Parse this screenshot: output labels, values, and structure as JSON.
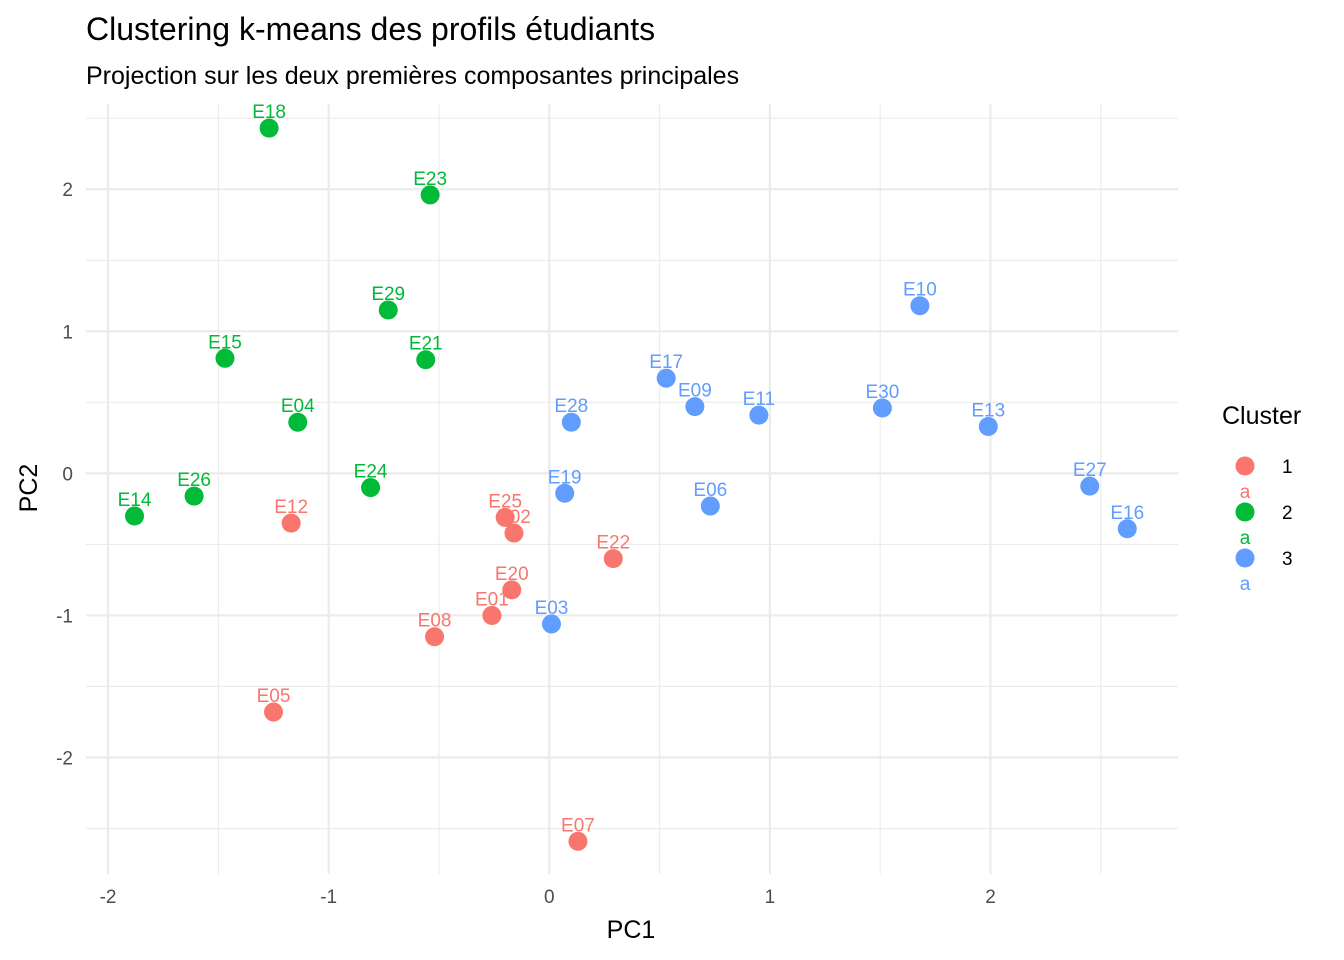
{
  "chart_data": {
    "type": "scatter",
    "title": "Clustering k-means des profils étudiants",
    "subtitle": "Projection sur les deux premières composantes principales",
    "xlabel": "PC1",
    "ylabel": "PC2",
    "xlim": [
      -2.1,
      2.85
    ],
    "ylim": [
      -2.82,
      2.6
    ],
    "x_ticks": [
      -2,
      -1,
      0,
      1,
      2
    ],
    "y_ticks": [
      -2,
      -1,
      0,
      1,
      2
    ],
    "x_tick_labels": [
      "-2",
      "-1",
      "0",
      "1",
      "2"
    ],
    "y_tick_labels": [
      "-2",
      "-1",
      "0",
      "1",
      "2"
    ],
    "grid": true,
    "legend": {
      "title": "Cluster",
      "position": "right",
      "key_letter": "a",
      "entries": [
        {
          "label": "1",
          "color": "#F8766D"
        },
        {
          "label": "2",
          "color": "#00BA38"
        },
        {
          "label": "3",
          "color": "#619CFF"
        }
      ]
    },
    "series": [
      {
        "name": "1",
        "color": "#F8766D",
        "points": [
          {
            "label": "E01",
            "x": -0.26,
            "y": -1.0
          },
          {
            "label": "E02",
            "x": -0.16,
            "y": -0.42
          },
          {
            "label": "E05",
            "x": -1.25,
            "y": -1.68
          },
          {
            "label": "E07",
            "x": 0.13,
            "y": -2.59
          },
          {
            "label": "E08",
            "x": -0.52,
            "y": -1.15
          },
          {
            "label": "E12",
            "x": -1.17,
            "y": -0.35
          },
          {
            "label": "E20",
            "x": -0.17,
            "y": -0.82
          },
          {
            "label": "E22",
            "x": 0.29,
            "y": -0.6
          },
          {
            "label": "E25",
            "x": -0.2,
            "y": -0.31
          }
        ]
      },
      {
        "name": "2",
        "color": "#00BA38",
        "points": [
          {
            "label": "E04",
            "x": -1.14,
            "y": 0.36
          },
          {
            "label": "E14",
            "x": -1.88,
            "y": -0.3
          },
          {
            "label": "E15",
            "x": -1.47,
            "y": 0.81
          },
          {
            "label": "E18",
            "x": -1.27,
            "y": 2.43
          },
          {
            "label": "E21",
            "x": -0.56,
            "y": 0.8
          },
          {
            "label": "E23",
            "x": -0.54,
            "y": 1.96
          },
          {
            "label": "E24",
            "x": -0.81,
            "y": -0.1
          },
          {
            "label": "E26",
            "x": -1.61,
            "y": -0.16
          },
          {
            "label": "E29",
            "x": -0.73,
            "y": 1.15
          }
        ]
      },
      {
        "name": "3",
        "color": "#619CFF",
        "points": [
          {
            "label": "E03",
            "x": 0.01,
            "y": -1.06
          },
          {
            "label": "E06",
            "x": 0.73,
            "y": -0.23
          },
          {
            "label": "E09",
            "x": 0.66,
            "y": 0.47
          },
          {
            "label": "E10",
            "x": 1.68,
            "y": 1.18
          },
          {
            "label": "E11",
            "x": 0.95,
            "y": 0.41
          },
          {
            "label": "E13",
            "x": 1.99,
            "y": 0.33
          },
          {
            "label": "E16",
            "x": 2.62,
            "y": -0.39
          },
          {
            "label": "E17",
            "x": 0.53,
            "y": 0.67
          },
          {
            "label": "E19",
            "x": 0.07,
            "y": -0.14
          },
          {
            "label": "E27",
            "x": 2.45,
            "y": -0.09
          },
          {
            "label": "E28",
            "x": 0.1,
            "y": 0.36
          },
          {
            "label": "E30",
            "x": 1.51,
            "y": 0.46
          }
        ]
      }
    ]
  }
}
